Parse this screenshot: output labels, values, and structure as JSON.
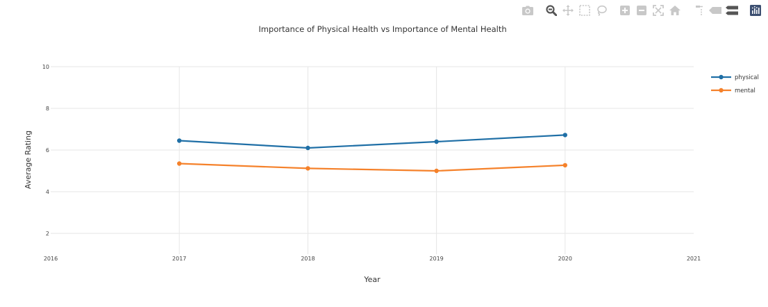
{
  "modebar": {
    "icons": [
      "camera-icon",
      "zoom-icon",
      "pan-icon",
      "box-select-icon",
      "lasso-select-icon",
      "zoom-in-icon",
      "zoom-out-icon",
      "autoscale-icon",
      "home-icon",
      "spike-lines-icon",
      "hover-closest-icon",
      "hover-compare-icon",
      "plotly-logo-icon"
    ],
    "active_icon": "zoom-icon",
    "colors": {
      "inactive": "#c8c8c8",
      "active": "#555555",
      "logo_bg": "#3c4f71"
    }
  },
  "chart_data": {
    "type": "line",
    "title": "Importance of Physical Health vs Importance of Mental Health",
    "xlabel": "Year",
    "ylabel": "Average Rating",
    "xlim": [
      2016,
      2021
    ],
    "ylim": [
      1,
      10
    ],
    "x_ticks": [
      2016,
      2017,
      2018,
      2019,
      2020,
      2021
    ],
    "y_ticks": [
      2,
      4,
      6,
      8,
      10
    ],
    "grid": true,
    "legend_position": "top-right",
    "x": [
      2017,
      2018,
      2019,
      2020
    ],
    "series": [
      {
        "name": "physical",
        "color": "#1f6fa6",
        "values": [
          6.45,
          6.1,
          6.4,
          6.72
        ]
      },
      {
        "name": "mental",
        "color": "#f5812a",
        "values": [
          5.35,
          5.12,
          5.0,
          5.27
        ]
      }
    ]
  }
}
